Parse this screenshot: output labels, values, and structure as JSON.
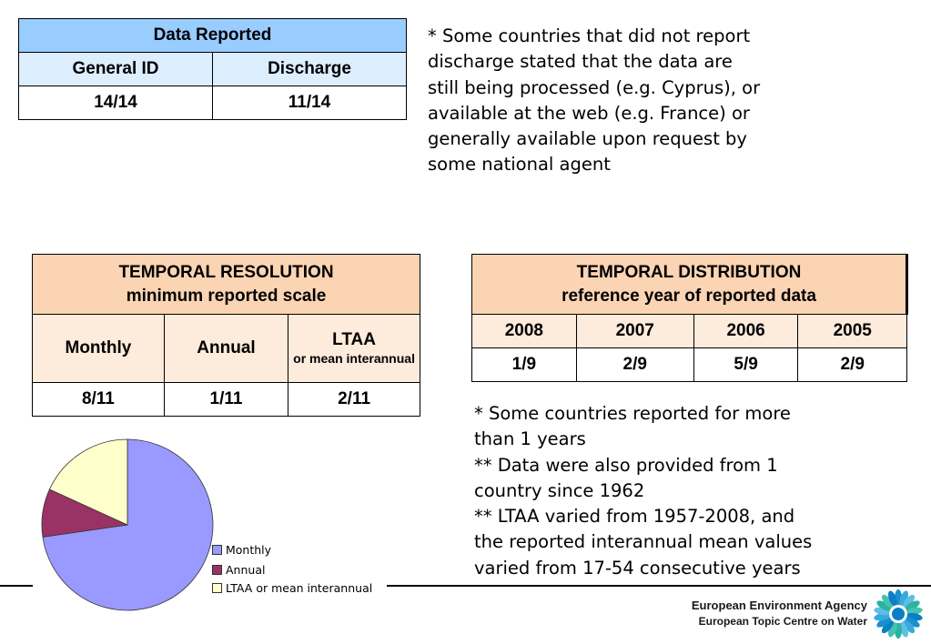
{
  "table_data_reported": {
    "header": "Data Reported",
    "columns": [
      "General ID",
      "Discharge"
    ],
    "values": [
      "14/14",
      "11/14"
    ]
  },
  "note_top": "* Some countries that did not report\ndischarge stated that the data are\nstill being processed (e.g. Cyprus), or\navailable at the web (e.g. France) or\ngenerally available upon request by\nsome national agent",
  "table_temporal_resolution": {
    "header_line1": "TEMPORAL RESOLUTION",
    "header_line2": "minimum reported scale",
    "columns": [
      "Monthly",
      "Annual",
      "LTAA"
    ],
    "ltaa_sub": "or mean interannual",
    "values": [
      "8/11",
      "1/11",
      "2/11"
    ]
  },
  "table_temporal_distribution": {
    "header_line1": "TEMPORAL DISTRIBUTION",
    "header_line2": "reference year of reported data",
    "columns": [
      "2008",
      "2007",
      "2006",
      "2005"
    ],
    "values": [
      "1/9",
      "2/9",
      "5/9",
      "2/9"
    ]
  },
  "note_bottom": "* Some countries reported for more\nthan 1 years\n** Data were also provided from 1\ncountry since 1962\n** LTAA varied from 1957-2008, and\nthe reported interannual mean values\nvaried from 17-54 consecutive years",
  "chart_data": {
    "type": "pie",
    "categories": [
      "Monthly",
      "Annual",
      "LTAA  or mean interannual"
    ],
    "values": [
      8,
      1,
      2
    ],
    "colors": [
      "#9999ff",
      "#993366",
      "#ffffcc"
    ],
    "legend_position": "right"
  },
  "footer": {
    "org_name": "European Environment Agency",
    "org_sub": "European Topic Centre on Water",
    "logo_icon": "eea-logo-icon"
  }
}
